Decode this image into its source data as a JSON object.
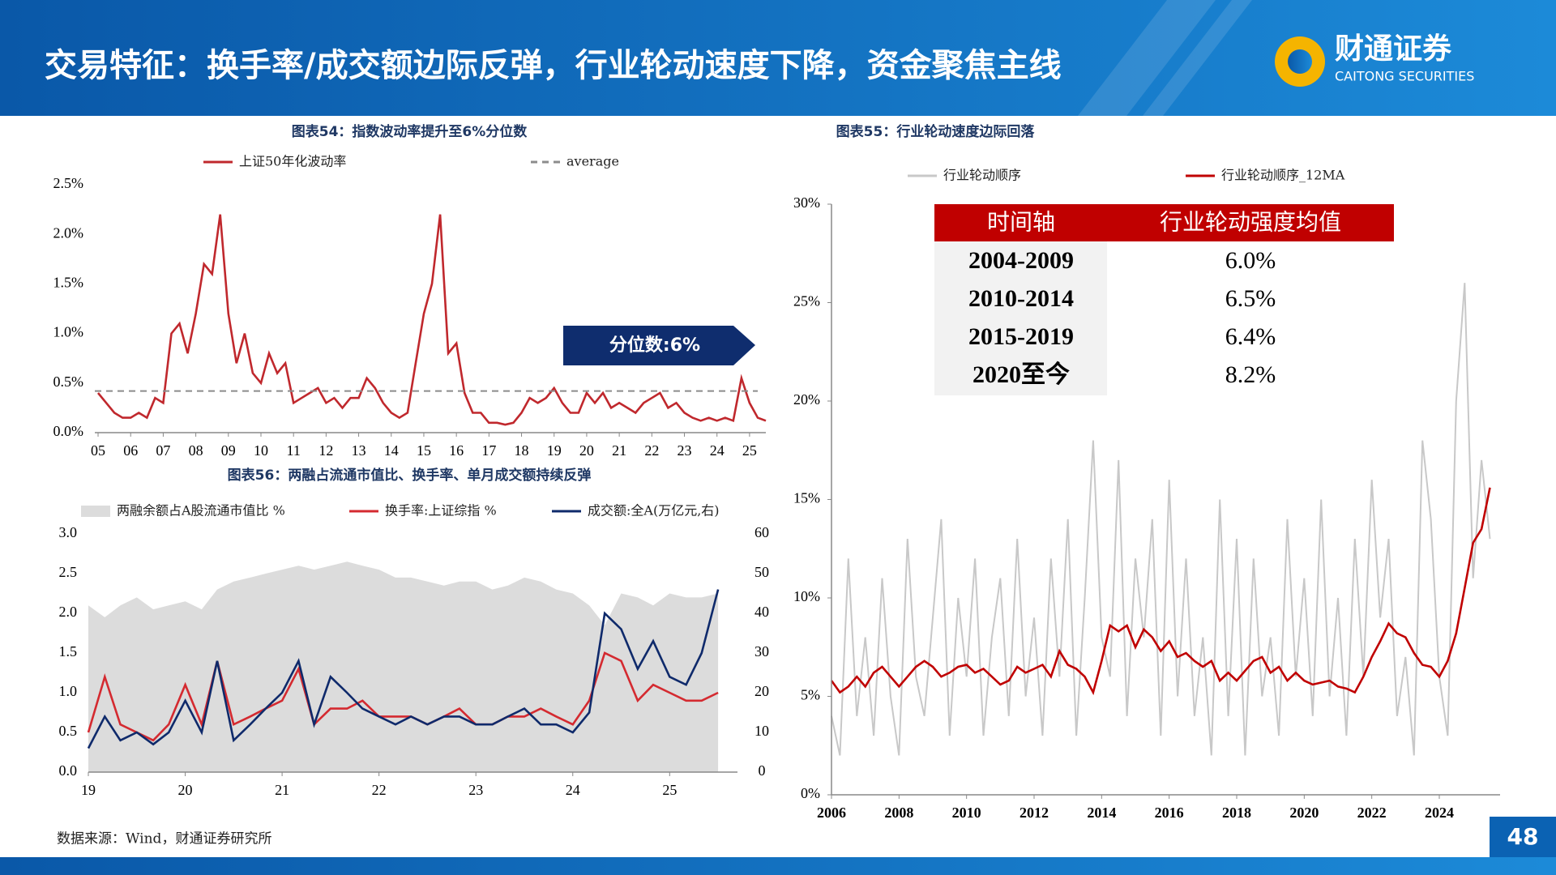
{
  "header": {
    "title": "交易特征：换手率/成交额边际反弹，行业轮动速度下降，资金聚焦主线",
    "logo_cn": "财通证券",
    "logo_en": "CAITONG SECURITIES"
  },
  "source": "数据来源：Wind，财通证券研究所",
  "page_number": 48,
  "chart_data": [
    {
      "type": "line",
      "title": "图表54：指数波动率提升至6%分位数",
      "annotation": "分位数:6%",
      "x": [
        2005,
        2005.25,
        2005.5,
        2005.75,
        2006,
        2006.25,
        2006.5,
        2006.75,
        2007,
        2007.25,
        2007.5,
        2007.75,
        2008,
        2008.25,
        2008.5,
        2008.75,
        2009,
        2009.25,
        2009.5,
        2009.75,
        2010,
        2010.25,
        2010.5,
        2010.75,
        2011,
        2011.25,
        2011.5,
        2011.75,
        2012,
        2012.25,
        2012.5,
        2012.75,
        2013,
        2013.25,
        2013.5,
        2013.75,
        2014,
        2014.25,
        2014.5,
        2014.75,
        2015,
        2015.25,
        2015.5,
        2015.75,
        2016,
        2016.25,
        2016.5,
        2016.75,
        2017,
        2017.25,
        2017.5,
        2017.75,
        2018,
        2018.25,
        2018.5,
        2018.75,
        2019,
        2019.25,
        2019.5,
        2019.75,
        2020,
        2020.25,
        2020.5,
        2020.75,
        2021,
        2021.25,
        2021.5,
        2021.75,
        2022,
        2022.25,
        2022.5,
        2022.75,
        2023,
        2023.25,
        2023.5,
        2023.75,
        2024,
        2024.25,
        2024.5,
        2024.75,
        2025,
        2025.25,
        2025.5
      ],
      "series": [
        {
          "name": "上证50年化波动率",
          "color": "#c0282d",
          "style": "line",
          "values": [
            0.4,
            0.3,
            0.2,
            0.15,
            0.15,
            0.2,
            0.15,
            0.35,
            0.3,
            1.0,
            1.1,
            0.8,
            1.2,
            1.7,
            1.6,
            2.2,
            1.2,
            0.7,
            1.0,
            0.6,
            0.5,
            0.8,
            0.6,
            0.7,
            0.3,
            0.35,
            0.4,
            0.45,
            0.3,
            0.35,
            0.25,
            0.35,
            0.35,
            0.55,
            0.45,
            0.3,
            0.2,
            0.15,
            0.2,
            0.7,
            1.2,
            1.5,
            2.2,
            0.8,
            0.9,
            0.4,
            0.2,
            0.2,
            0.1,
            0.1,
            0.08,
            0.1,
            0.2,
            0.35,
            0.3,
            0.35,
            0.45,
            0.3,
            0.2,
            0.2,
            0.4,
            0.3,
            0.4,
            0.25,
            0.3,
            0.25,
            0.2,
            0.3,
            0.35,
            0.4,
            0.25,
            0.3,
            0.2,
            0.15,
            0.12,
            0.15,
            0.12,
            0.15,
            0.12,
            0.55,
            0.3,
            0.15,
            0.12
          ]
        }
      ],
      "reference_lines": [
        {
          "name": "average",
          "value": 0.42,
          "color": "#8c8c8c",
          "dashed": true
        }
      ],
      "xlim": [
        2004.9,
        2025.5
      ],
      "xticks": [
        {
          "value": 2005,
          "label": "05"
        },
        {
          "value": 2006,
          "label": "06"
        },
        {
          "value": 2007,
          "label": "07"
        },
        {
          "value": 2008,
          "label": "08"
        },
        {
          "value": 2009,
          "label": "09"
        },
        {
          "value": 2010,
          "label": "10"
        },
        {
          "value": 2011,
          "label": "11"
        },
        {
          "value": 2012,
          "label": "12"
        },
        {
          "value": 2013,
          "label": "13"
        },
        {
          "value": 2014,
          "label": "14"
        },
        {
          "value": 2015,
          "label": "15"
        },
        {
          "value": 2016,
          "label": "16"
        },
        {
          "value": 2017,
          "label": "17"
        },
        {
          "value": 2018,
          "label": "18"
        },
        {
          "value": 2019,
          "label": "19"
        },
        {
          "value": 2020,
          "label": "20"
        },
        {
          "value": 2021,
          "label": "21"
        },
        {
          "value": 2022,
          "label": "22"
        },
        {
          "value": 2023,
          "label": "23"
        },
        {
          "value": 2024,
          "label": "24"
        },
        {
          "value": 2025,
          "label": "25"
        }
      ],
      "ylim": [
        0,
        2.5
      ],
      "yticks": [
        {
          "value": 0,
          "label": "0.0%"
        },
        {
          "value": 0.5,
          "label": "0.5%"
        },
        {
          "value": 1,
          "label": "1.0%"
        },
        {
          "value": 1.5,
          "label": "1.5%"
        },
        {
          "value": 2,
          "label": "2.0%"
        },
        {
          "value": 2.5,
          "label": "2.5%"
        }
      ]
    },
    {
      "type": "line",
      "title": "图表56：两融占流通市值比、换手率、单月成交额持续反弹",
      "x": [
        2019,
        2019.17,
        2019.33,
        2019.5,
        2019.67,
        2019.83,
        2020,
        2020.17,
        2020.33,
        2020.5,
        2020.67,
        2020.83,
        2021,
        2021.17,
        2021.33,
        2021.5,
        2021.67,
        2021.83,
        2022,
        2022.17,
        2022.33,
        2022.5,
        2022.67,
        2022.83,
        2023,
        2023.17,
        2023.33,
        2023.5,
        2023.67,
        2023.83,
        2024,
        2024.17,
        2024.33,
        2024.5,
        2024.67,
        2024.83,
        2025,
        2025.17,
        2025.33,
        2025.5
      ],
      "series": [
        {
          "name": "两融余额占A股流通市值比 %",
          "color": "#dcdcdc",
          "style": "area",
          "values": [
            2.1,
            1.95,
            2.1,
            2.2,
            2.05,
            2.1,
            2.15,
            2.05,
            2.3,
            2.4,
            2.45,
            2.5,
            2.55,
            2.6,
            2.55,
            2.6,
            2.65,
            2.6,
            2.55,
            2.45,
            2.45,
            2.4,
            2.35,
            2.4,
            2.4,
            2.3,
            2.35,
            2.45,
            2.4,
            2.3,
            2.25,
            2.1,
            1.85,
            2.25,
            2.2,
            2.1,
            2.25,
            2.2,
            2.2,
            2.25
          ]
        },
        {
          "name": "换手率:上证综指 %",
          "color": "#d42a30",
          "style": "line",
          "values": [
            0.5,
            1.2,
            0.6,
            0.5,
            0.4,
            0.6,
            1.1,
            0.6,
            1.4,
            0.6,
            0.7,
            0.8,
            0.9,
            1.3,
            0.6,
            0.8,
            0.8,
            0.9,
            0.7,
            0.7,
            0.7,
            0.6,
            0.7,
            0.8,
            0.6,
            0.6,
            0.7,
            0.7,
            0.8,
            0.7,
            0.6,
            0.9,
            1.5,
            1.4,
            0.9,
            1.1,
            1.0,
            0.9,
            0.9,
            1.0
          ]
        },
        {
          "name": "成交额:全A(万亿元,右)",
          "color": "#0f2a6b",
          "style": "line",
          "axis": "y2",
          "values": [
            6,
            14,
            8,
            10,
            7,
            10,
            18,
            10,
            28,
            8,
            12,
            16,
            20,
            28,
            12,
            24,
            20,
            16,
            14,
            12,
            14,
            12,
            14,
            14,
            12,
            12,
            14,
            16,
            12,
            12,
            10,
            15,
            40,
            36,
            26,
            33,
            24,
            22,
            30,
            46
          ]
        }
      ],
      "xlim": [
        2019,
        2025.7
      ],
      "xticks": [
        {
          "value": 2019,
          "label": "19"
        },
        {
          "value": 2020,
          "label": "20"
        },
        {
          "value": 2021,
          "label": "21"
        },
        {
          "value": 2022,
          "label": "22"
        },
        {
          "value": 2023,
          "label": "23"
        },
        {
          "value": 2024,
          "label": "24"
        },
        {
          "value": 2025,
          "label": "25"
        }
      ],
      "ylim": [
        0,
        3
      ],
      "yticks": [
        {
          "value": 0,
          "label": "0.0"
        },
        0.5,
        {
          "value": 1,
          "label": "1.0"
        },
        1.5,
        {
          "value": 2,
          "label": "2.0"
        },
        2.5,
        {
          "value": 3,
          "label": "3.0"
        }
      ],
      "y2lim": [
        0,
        60
      ],
      "y2ticks": [
        0,
        10,
        20,
        30,
        40,
        50,
        60
      ]
    },
    {
      "type": "line",
      "title": "图表55：行业轮动速度边际回落",
      "x": [
        2006,
        2006.25,
        2006.5,
        2006.75,
        2007,
        2007.25,
        2007.5,
        2007.75,
        2008,
        2008.25,
        2008.5,
        2008.75,
        2009,
        2009.25,
        2009.5,
        2009.75,
        2010,
        2010.25,
        2010.5,
        2010.75,
        2011,
        2011.25,
        2011.5,
        2011.75,
        2012,
        2012.25,
        2012.5,
        2012.75,
        2013,
        2013.25,
        2013.5,
        2013.75,
        2014,
        2014.25,
        2014.5,
        2014.75,
        2015,
        2015.25,
        2015.5,
        2015.75,
        2016,
        2016.25,
        2016.5,
        2016.75,
        2017,
        2017.25,
        2017.5,
        2017.75,
        2018,
        2018.25,
        2018.5,
        2018.75,
        2019,
        2019.25,
        2019.5,
        2019.75,
        2020,
        2020.25,
        2020.5,
        2020.75,
        2021,
        2021.25,
        2021.5,
        2021.75,
        2022,
        2022.25,
        2022.5,
        2022.75,
        2023,
        2023.25,
        2023.5,
        2023.75,
        2024,
        2024.25,
        2024.5,
        2024.75,
        2025,
        2025.25,
        2025.5
      ],
      "series": [
        {
          "name": "行业轮动顺序",
          "color": "#c8c8c8",
          "style": "line",
          "values": [
            4,
            2,
            12,
            4,
            8,
            3,
            11,
            5,
            2,
            13,
            6,
            4,
            9,
            14,
            3,
            10,
            6,
            12,
            3,
            8,
            11,
            4,
            13,
            5,
            9,
            3,
            12,
            6,
            14,
            3,
            10,
            18,
            8,
            6,
            17,
            4,
            12,
            8,
            14,
            3,
            16,
            5,
            12,
            4,
            8,
            2,
            15,
            4,
            13,
            2,
            12,
            5,
            8,
            3,
            14,
            6,
            11,
            4,
            15,
            5,
            10,
            3,
            13,
            6,
            16,
            9,
            13,
            4,
            7,
            2,
            18,
            14,
            6,
            3,
            20,
            26,
            11,
            17,
            13
          ]
        },
        {
          "name": "行业轮动顺序_12MA",
          "color": "#c00000",
          "style": "line",
          "values": [
            5.8,
            5.2,
            5.5,
            6.0,
            5.5,
            6.2,
            6.5,
            6.0,
            5.5,
            6.0,
            6.5,
            6.8,
            6.5,
            6.0,
            6.2,
            6.5,
            6.6,
            6.2,
            6.4,
            6.0,
            5.6,
            5.8,
            6.5,
            6.2,
            6.4,
            6.6,
            6.0,
            7.3,
            6.6,
            6.4,
            6.0,
            5.2,
            6.8,
            8.6,
            8.3,
            8.6,
            7.5,
            8.4,
            8.0,
            7.3,
            7.8,
            7.0,
            7.2,
            6.8,
            6.5,
            6.8,
            5.8,
            6.2,
            5.8,
            6.3,
            6.8,
            7.0,
            6.2,
            6.5,
            5.8,
            6.2,
            5.8,
            5.6,
            5.7,
            5.8,
            5.5,
            5.4,
            5.2,
            6.0,
            7.0,
            7.8,
            8.7,
            8.2,
            8.0,
            7.2,
            6.6,
            6.5,
            6.0,
            6.8,
            8.2,
            10.5,
            12.8,
            13.5,
            15.6
          ]
        }
      ],
      "table": {
        "header": [
          "时间轴",
          "行业轮动强度均值"
        ],
        "rows": [
          [
            "2004-2009",
            "6.0%"
          ],
          [
            "2010-2014",
            "6.5%"
          ],
          [
            "2015-2019",
            "6.4%"
          ],
          [
            "2020至今",
            "8.2%"
          ]
        ]
      },
      "xlim": [
        2006,
        2025.8
      ],
      "xticks": [
        2006,
        2008,
        2010,
        2012,
        2014,
        2016,
        2018,
        2020,
        2022,
        2024
      ],
      "ylim": [
        0,
        30
      ],
      "yticks": [
        {
          "value": 0,
          "label": "0%"
        },
        {
          "value": 5,
          "label": "5%"
        },
        {
          "value": 10,
          "label": "10%"
        },
        {
          "value": 15,
          "label": "15%"
        },
        {
          "value": 20,
          "label": "20%"
        },
        {
          "value": 25,
          "label": "25%"
        },
        {
          "value": 30,
          "label": "30%"
        }
      ]
    }
  ]
}
